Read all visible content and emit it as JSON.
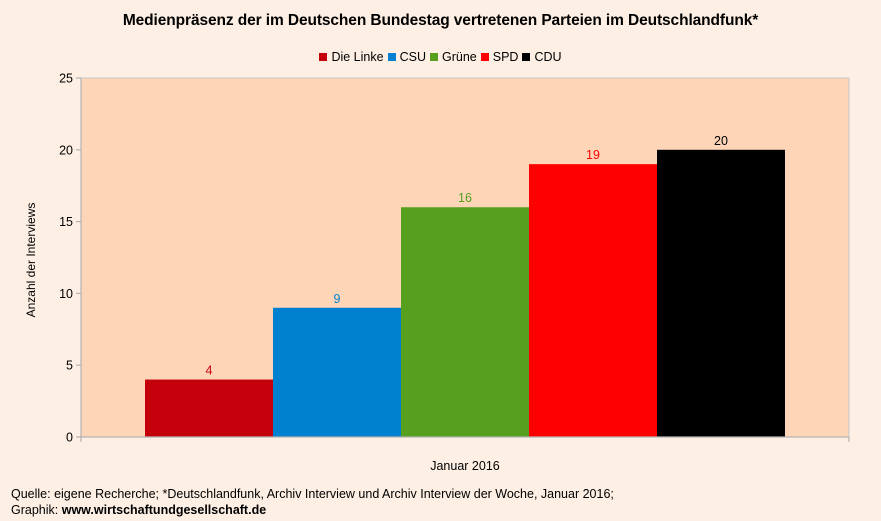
{
  "chart_data": {
    "type": "bar",
    "title": "Medienpräsenz der im Deutschen Bundestag vertretenen Parteien im Deutschlandfunk*",
    "xlabel": "",
    "ylabel": "Anzahl der Interviews",
    "categories": [
      "Januar 2016"
    ],
    "series": [
      {
        "name": "Die Linke",
        "values": [
          4
        ],
        "color": "#C4000B"
      },
      {
        "name": "CSU",
        "values": [
          9
        ],
        "color": "#0081D0"
      },
      {
        "name": "Grüne",
        "values": [
          16
        ],
        "color": "#56A01E"
      },
      {
        "name": "SPD",
        "values": [
          19
        ],
        "color": "#FF0000"
      },
      {
        "name": "CDU",
        "values": [
          20
        ],
        "color": "#000000"
      }
    ],
    "ylim": [
      0,
      25
    ],
    "yticks": [
      0,
      5,
      10,
      15,
      20,
      25
    ],
    "grid": false,
    "legend": "top-center",
    "data_labels": true,
    "plot_background": "#FFD5B8"
  },
  "footer": {
    "source_line": "Quelle: eigene Recherche; *Deutschlandfunk, Archiv Interview und Archiv Interview der Woche, Januar 2016;",
    "graphic_prefix": "Graphik: ",
    "graphic_url": "www.wirtschaftundgesellschaft.de"
  }
}
